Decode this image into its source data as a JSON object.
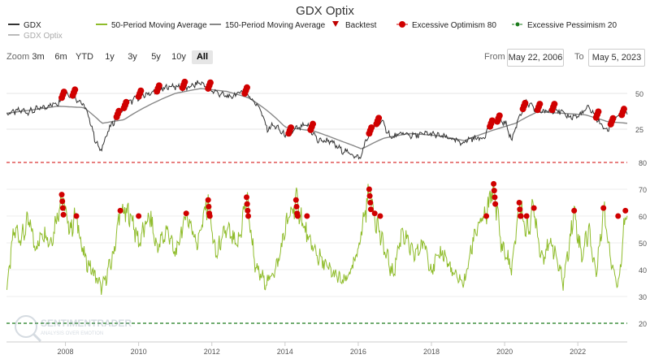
{
  "title": "GDX Optix",
  "legend": [
    {
      "name": "GDX",
      "color": "#333333",
      "type": "line"
    },
    {
      "name": "50-Period Moving Average",
      "color": "#8fbc2b",
      "type": "line"
    },
    {
      "name": "150-Period Moving Average",
      "color": "#888888",
      "type": "line"
    },
    {
      "name": "Backtest",
      "color": "#c00000",
      "type": "triangle"
    },
    {
      "name": "Excessive Optimism 80",
      "color": "#d00000",
      "type": "dot"
    },
    {
      "name": "Excessive Pessimism 20",
      "color": "#1a7a1a",
      "type": "dash-dot"
    },
    {
      "name": "GDX Optix",
      "color": "#bbbbbb",
      "type": "line"
    }
  ],
  "toolbar": {
    "zoom_label": "Zoom",
    "zoom_buttons": [
      "3m",
      "6m",
      "YTD",
      "1y",
      "3y",
      "5y",
      "10y",
      "All"
    ],
    "active_zoom": "All",
    "from_label": "From",
    "from_value": "May 22, 2006",
    "to_label": "To",
    "to_value": "May 5, 2023"
  },
  "watermark": {
    "line1": "SENTIMENTRADER",
    "line2": "ANALYSIS OVER EMOTION"
  },
  "colors": {
    "gdx": "#333333",
    "ma150": "#888888",
    "optix": "#8fbc2b",
    "optimism": "#d00000",
    "pessimism": "#1a7a1a",
    "marker": "#cc0000"
  },
  "chart_data": [
    {
      "type": "line",
      "name": "GDX price panel",
      "y_scale": "log",
      "x_range": [
        "2006-05-22",
        "2023-05-05"
      ],
      "y_ticks": [
        25,
        50
      ],
      "x_ticks": [
        "2008",
        "2010",
        "2012",
        "2014",
        "2016",
        "2018",
        "2020",
        "2022"
      ],
      "series": [
        {
          "name": "GDX",
          "x": [
            2006.4,
            2006.8,
            2007.0,
            2007.4,
            2007.8,
            2008.0,
            2008.2,
            2008.5,
            2008.8,
            2008.95,
            2009.2,
            2009.5,
            2009.8,
            2010.0,
            2010.5,
            2010.9,
            2011.3,
            2011.7,
            2011.9,
            2012.2,
            2012.5,
            2012.8,
            2013.0,
            2013.3,
            2013.5,
            2013.7,
            2014.0,
            2014.3,
            2014.6,
            2014.9,
            2015.2,
            2015.5,
            2015.9,
            2016.05,
            2016.3,
            2016.6,
            2016.9,
            2017.2,
            2017.5,
            2017.9,
            2018.2,
            2018.5,
            2018.8,
            2019.1,
            2019.4,
            2019.7,
            2020.0,
            2020.2,
            2020.4,
            2020.6,
            2020.8,
            2021.1,
            2021.4,
            2021.7,
            2022.0,
            2022.3,
            2022.6,
            2022.8,
            2023.0,
            2023.2,
            2023.35
          ],
          "y": [
            34,
            36,
            35,
            38,
            42,
            50,
            48,
            40,
            21,
            16,
            25,
            35,
            43,
            47,
            52,
            58,
            55,
            62,
            55,
            50,
            46,
            52,
            48,
            38,
            25,
            27,
            22,
            25,
            27,
            20,
            20,
            17,
            15,
            14,
            23,
            30,
            21,
            23,
            22,
            23,
            22,
            21,
            19,
            21,
            21,
            29,
            29,
            20,
            32,
            42,
            37,
            35,
            37,
            32,
            32,
            38,
            28,
            24,
            31,
            33,
            35
          ]
        },
        {
          "name": "150-Period Moving Average",
          "x": [
            2006.4,
            2007.0,
            2007.8,
            2008.5,
            2009.0,
            2009.6,
            2010.3,
            2011.0,
            2011.7,
            2012.4,
            2013.0,
            2013.5,
            2014.0,
            2014.8,
            2015.5,
            2016.1,
            2016.7,
            2017.4,
            2018.2,
            2018.9,
            2019.6,
            2020.3,
            2020.9,
            2021.6,
            2022.2,
            2022.8,
            2023.35
          ],
          "y": [
            34,
            36,
            39,
            38,
            28,
            30,
            40,
            50,
            55,
            52,
            46,
            36,
            26,
            24,
            20,
            17,
            21,
            23,
            22,
            20,
            24,
            28,
            35,
            34,
            33,
            29,
            28
          ]
        }
      ],
      "excessive_optimism_markers": [
        2007.9,
        2008.2,
        2009.4,
        2009.6,
        2010.0,
        2010.5,
        2011.2,
        2011.9,
        2012.9,
        2014.1,
        2014.7,
        2016.3,
        2016.5,
        2019.6,
        2019.8,
        2020.5,
        2020.9,
        2021.3,
        2022.5,
        2022.9,
        2023.2
      ]
    },
    {
      "type": "line",
      "name": "GDX Optix panel",
      "y_ticks": [
        20,
        30,
        40,
        50,
        60,
        70,
        80
      ],
      "ylim": [
        15,
        80
      ],
      "reference_lines": [
        {
          "name": "Excessive Optimism 80",
          "value": 80
        },
        {
          "name": "Excessive Pessimism 20",
          "value": 20
        }
      ],
      "series": [
        {
          "name": "GDX Optix",
          "x": [
            2006.4,
            2006.6,
            2006.8,
            2007.0,
            2007.2,
            2007.4,
            2007.6,
            2007.9,
            2008.1,
            2008.3,
            2008.5,
            2008.8,
            2009.0,
            2009.3,
            2009.5,
            2009.8,
            2010.0,
            2010.3,
            2010.5,
            2010.8,
            2011.0,
            2011.3,
            2011.6,
            2011.9,
            2012.1,
            2012.4,
            2012.7,
            2012.95,
            2013.2,
            2013.5,
            2013.8,
            2014.0,
            2014.3,
            2014.6,
            2014.9,
            2015.2,
            2015.6,
            2015.9,
            2016.1,
            2016.3,
            2016.5,
            2016.7,
            2016.95,
            2017.2,
            2017.5,
            2017.8,
            2018.0,
            2018.3,
            2018.6,
            2018.9,
            2019.2,
            2019.5,
            2019.7,
            2019.9,
            2020.2,
            2020.4,
            2020.6,
            2020.8,
            2021.0,
            2021.3,
            2021.6,
            2021.9,
            2022.1,
            2022.3,
            2022.5,
            2022.7,
            2022.9,
            2023.1,
            2023.3,
            2023.35
          ],
          "y": [
            33,
            55,
            52,
            58,
            48,
            55,
            50,
            68,
            55,
            60,
            45,
            38,
            33,
            45,
            62,
            60,
            50,
            60,
            48,
            55,
            45,
            61,
            50,
            66,
            45,
            55,
            48,
            67,
            40,
            35,
            42,
            55,
            66,
            52,
            45,
            40,
            35,
            42,
            55,
            70,
            58,
            48,
            38,
            55,
            45,
            50,
            40,
            47,
            38,
            35,
            55,
            60,
            72,
            50,
            40,
            65,
            54,
            63,
            45,
            50,
            35,
            62,
            45,
            55,
            38,
            63,
            45,
            33,
            62,
            60
          ]
        }
      ],
      "excessive_optimism_markers": [
        2007.9,
        2008.3,
        2009.5,
        2010.0,
        2011.3,
        2011.9,
        2012.95,
        2014.3,
        2014.6,
        2016.3,
        2016.45,
        2016.6,
        2019.5,
        2019.7,
        2020.4,
        2020.6,
        2020.8,
        2021.9,
        2022.7,
        2023.1,
        2023.3
      ]
    }
  ]
}
